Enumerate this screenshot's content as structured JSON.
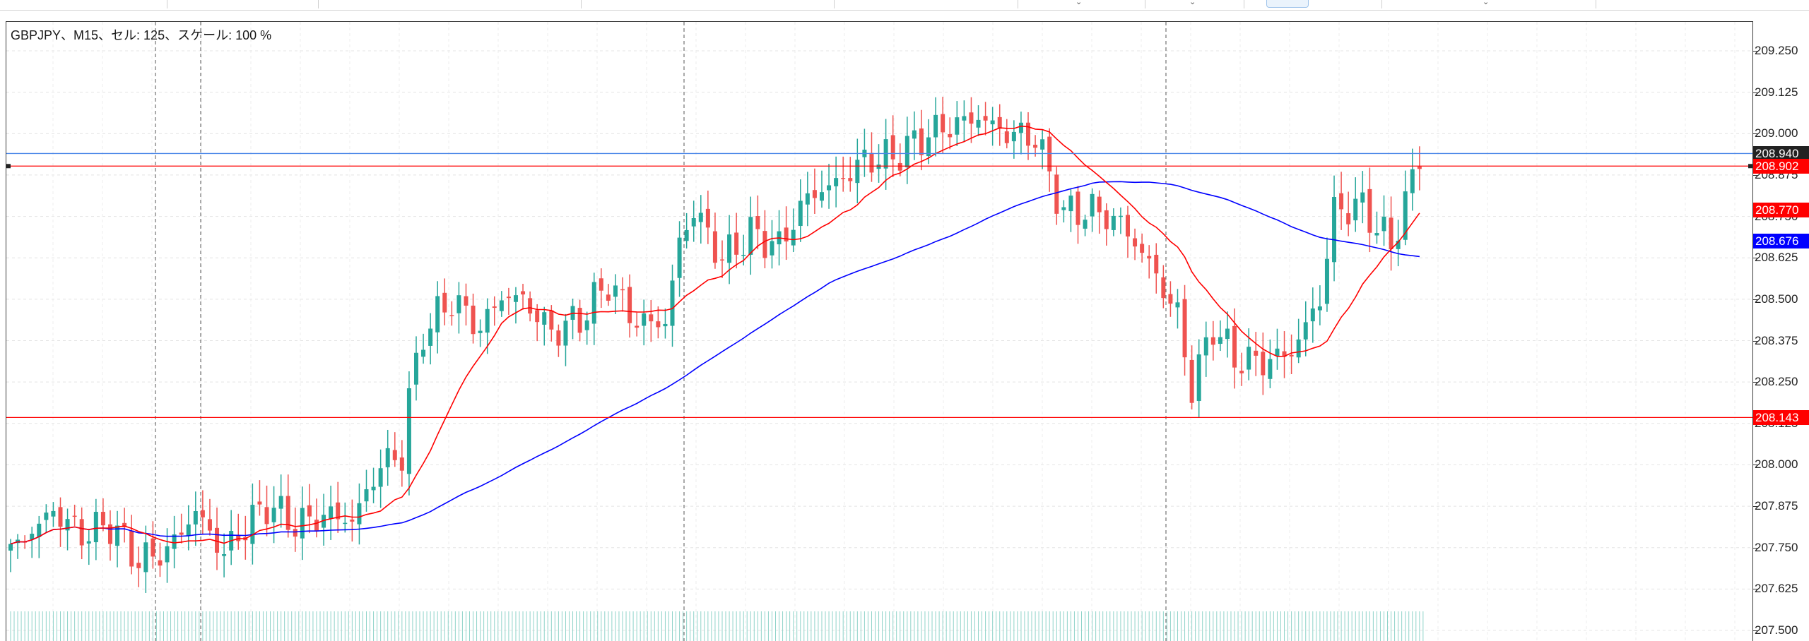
{
  "toolbar": {
    "label": "chart-toolbar"
  },
  "info": {
    "text": "GBPJPY、M15、セル: 125、スケール: 100 %",
    "symbol": "GBPJPY",
    "timeframe": "M15",
    "cells": 125,
    "scale_percent": 100
  },
  "price_axis": {
    "ticks": [
      "209.250",
      "209.125",
      "209.000",
      "208.875",
      "208.750",
      "208.625",
      "208.500",
      "208.375",
      "208.250",
      "208.125",
      "208.000",
      "207.875",
      "207.750",
      "207.625",
      "207.500"
    ],
    "tags": {
      "bid": {
        "value": "208.940",
        "color": "#222222"
      },
      "ask": {
        "value": "208.902",
        "color": "#ff0000"
      },
      "ma_fast": {
        "value": "208.770",
        "color": "#ff0000"
      },
      "ma_slow": {
        "value": "208.676",
        "color": "#0000ff"
      },
      "hline": {
        "value": "208.143",
        "color": "#ff0000"
      }
    }
  },
  "chart_data": {
    "type": "candlestick",
    "symbol": "GBPJPY",
    "timeframe": "M15",
    "y_range": [
      207.44,
      209.33
    ],
    "grid": true,
    "candle_count": 125,
    "up_color": "#26a69a",
    "down_color": "#ef5350",
    "anchors_close": [
      [
        0,
        207.74
      ],
      [
        6,
        207.86
      ],
      [
        10,
        207.79
      ],
      [
        14,
        207.82
      ],
      [
        18,
        207.71
      ],
      [
        22,
        207.74
      ],
      [
        26,
        207.86
      ],
      [
        30,
        207.73
      ],
      [
        32,
        207.79
      ],
      [
        36,
        207.88
      ],
      [
        40,
        207.82
      ],
      [
        45,
        207.85
      ],
      [
        48,
        207.83
      ],
      [
        52,
        208.0
      ],
      [
        55,
        208.03
      ],
      [
        56,
        208.2
      ],
      [
        58,
        208.4
      ],
      [
        62,
        208.5
      ],
      [
        66,
        208.41
      ],
      [
        69,
        208.51
      ],
      [
        72,
        208.5
      ],
      [
        76,
        208.4
      ],
      [
        80,
        208.44
      ],
      [
        84,
        208.55
      ],
      [
        88,
        208.43
      ],
      [
        92,
        208.43
      ],
      [
        94,
        208.67
      ],
      [
        96,
        208.77
      ],
      [
        100,
        208.62
      ],
      [
        104,
        208.7
      ],
      [
        108,
        208.66
      ],
      [
        112,
        208.81
      ],
      [
        116,
        208.85
      ],
      [
        120,
        208.92
      ],
      [
        124,
        208.93
      ],
      [
        129,
        209.0
      ],
      [
        133,
        209.03
      ],
      [
        136,
        209.05
      ],
      [
        140,
        209.0
      ],
      [
        144,
        208.99
      ],
      [
        148,
        208.76
      ],
      [
        152,
        208.77
      ],
      [
        156,
        208.73
      ],
      [
        160,
        208.61
      ],
      [
        164,
        208.45
      ],
      [
        166,
        208.23
      ],
      [
        169,
        208.42
      ],
      [
        172,
        208.32
      ],
      [
        176,
        208.31
      ],
      [
        180,
        208.34
      ],
      [
        184,
        208.5
      ],
      [
        186,
        208.77
      ],
      [
        190,
        208.78
      ],
      [
        194,
        208.66
      ],
      [
        198,
        208.93
      ]
    ],
    "hlines": [
      {
        "price": 208.94,
        "color": "#4a86e8",
        "label": "bid"
      },
      {
        "price": 208.902,
        "color": "#ff0000",
        "label": "ask"
      },
      {
        "price": 208.143,
        "color": "#ff0000",
        "label": "level"
      }
    ],
    "vlines_dashed": [
      220,
      284,
      968,
      1650
    ],
    "moving_averages": [
      {
        "name": "MA fast",
        "color": "#ff0000",
        "last": 208.77
      },
      {
        "name": "MA slow",
        "color": "#0000ff",
        "last": 208.676
      }
    ]
  }
}
